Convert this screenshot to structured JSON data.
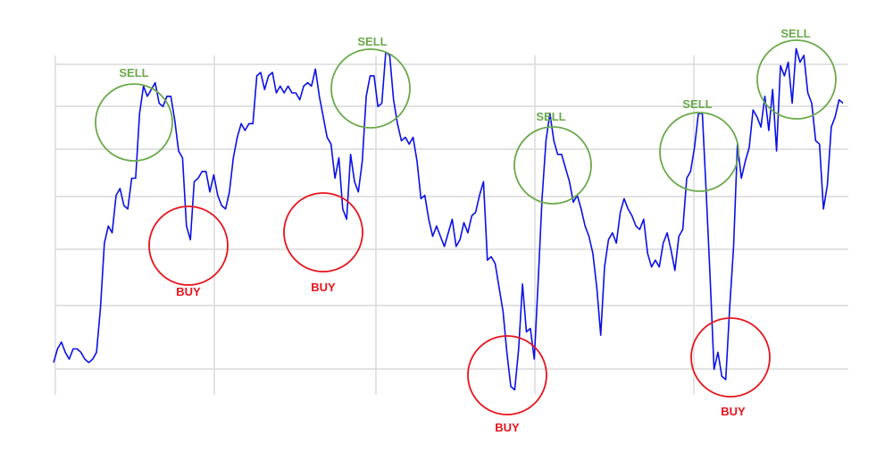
{
  "chart_data": {
    "type": "line",
    "title": "",
    "xlabel": "",
    "ylabel": "",
    "ylim": [
      0,
      100
    ],
    "grid": true,
    "legend": "none",
    "colors": {
      "line": "#0a10e6",
      "buy": "#e8131b",
      "sell": "#6aa94a",
      "grid": "#d9d9d9"
    },
    "series": [
      {
        "values": [
          10,
          14,
          16,
          13,
          11,
          14,
          14,
          13,
          11,
          10,
          11,
          13,
          26,
          45,
          50,
          48,
          59,
          61,
          56,
          55,
          64,
          64,
          83,
          91,
          88,
          90,
          92,
          86,
          85,
          88,
          88,
          81,
          72,
          70,
          50,
          46,
          63,
          64,
          66,
          66,
          60,
          65,
          59,
          56,
          55,
          60,
          70,
          76,
          80,
          78,
          80,
          80,
          94,
          95,
          90,
          94,
          95,
          89,
          91,
          89,
          91,
          89,
          89,
          87,
          91,
          92,
          91,
          96,
          88,
          82,
          76,
          74,
          64,
          70,
          55,
          52,
          71,
          63,
          60,
          69,
          88,
          94,
          94,
          85,
          86,
          101,
          100,
          87,
          80,
          75,
          76,
          74,
          76,
          69,
          58,
          59,
          52,
          47,
          50,
          47,
          44,
          48,
          52,
          44,
          46,
          51,
          48,
          53,
          54,
          59,
          63,
          40,
          41,
          39,
          32,
          25,
          13,
          3,
          2,
          14,
          33,
          19,
          20,
          11,
          34,
          58,
          75,
          83,
          75,
          71,
          71,
          67,
          63,
          57,
          59,
          55,
          50,
          47,
          42,
          32,
          18,
          38,
          46,
          48,
          45,
          54,
          58,
          55,
          53,
          50,
          49,
          52,
          42,
          38,
          40,
          38,
          45,
          48,
          43,
          37,
          47,
          49,
          64,
          66,
          73,
          83,
          83,
          60,
          35,
          8,
          13,
          6,
          5,
          26,
          44,
          74,
          64,
          69,
          73,
          84,
          82,
          79,
          88,
          78,
          90,
          72,
          97,
          94,
          98,
          86,
          102,
          98,
          100,
          89,
          86,
          75,
          74,
          55,
          62,
          79,
          82,
          87,
          86
        ]
      }
    ],
    "annotations": [
      {
        "text": "SELL",
        "type": "sell"
      },
      {
        "text": "BUY",
        "type": "buy"
      },
      {
        "text": "BUY",
        "type": "buy"
      },
      {
        "text": "SELL",
        "type": "sell"
      },
      {
        "text": "BUY",
        "type": "buy"
      },
      {
        "text": "SELL",
        "type": "sell"
      },
      {
        "text": "SELL",
        "type": "sell"
      },
      {
        "text": "BUY",
        "type": "buy"
      },
      {
        "text": "SELL",
        "type": "sell"
      }
    ]
  }
}
